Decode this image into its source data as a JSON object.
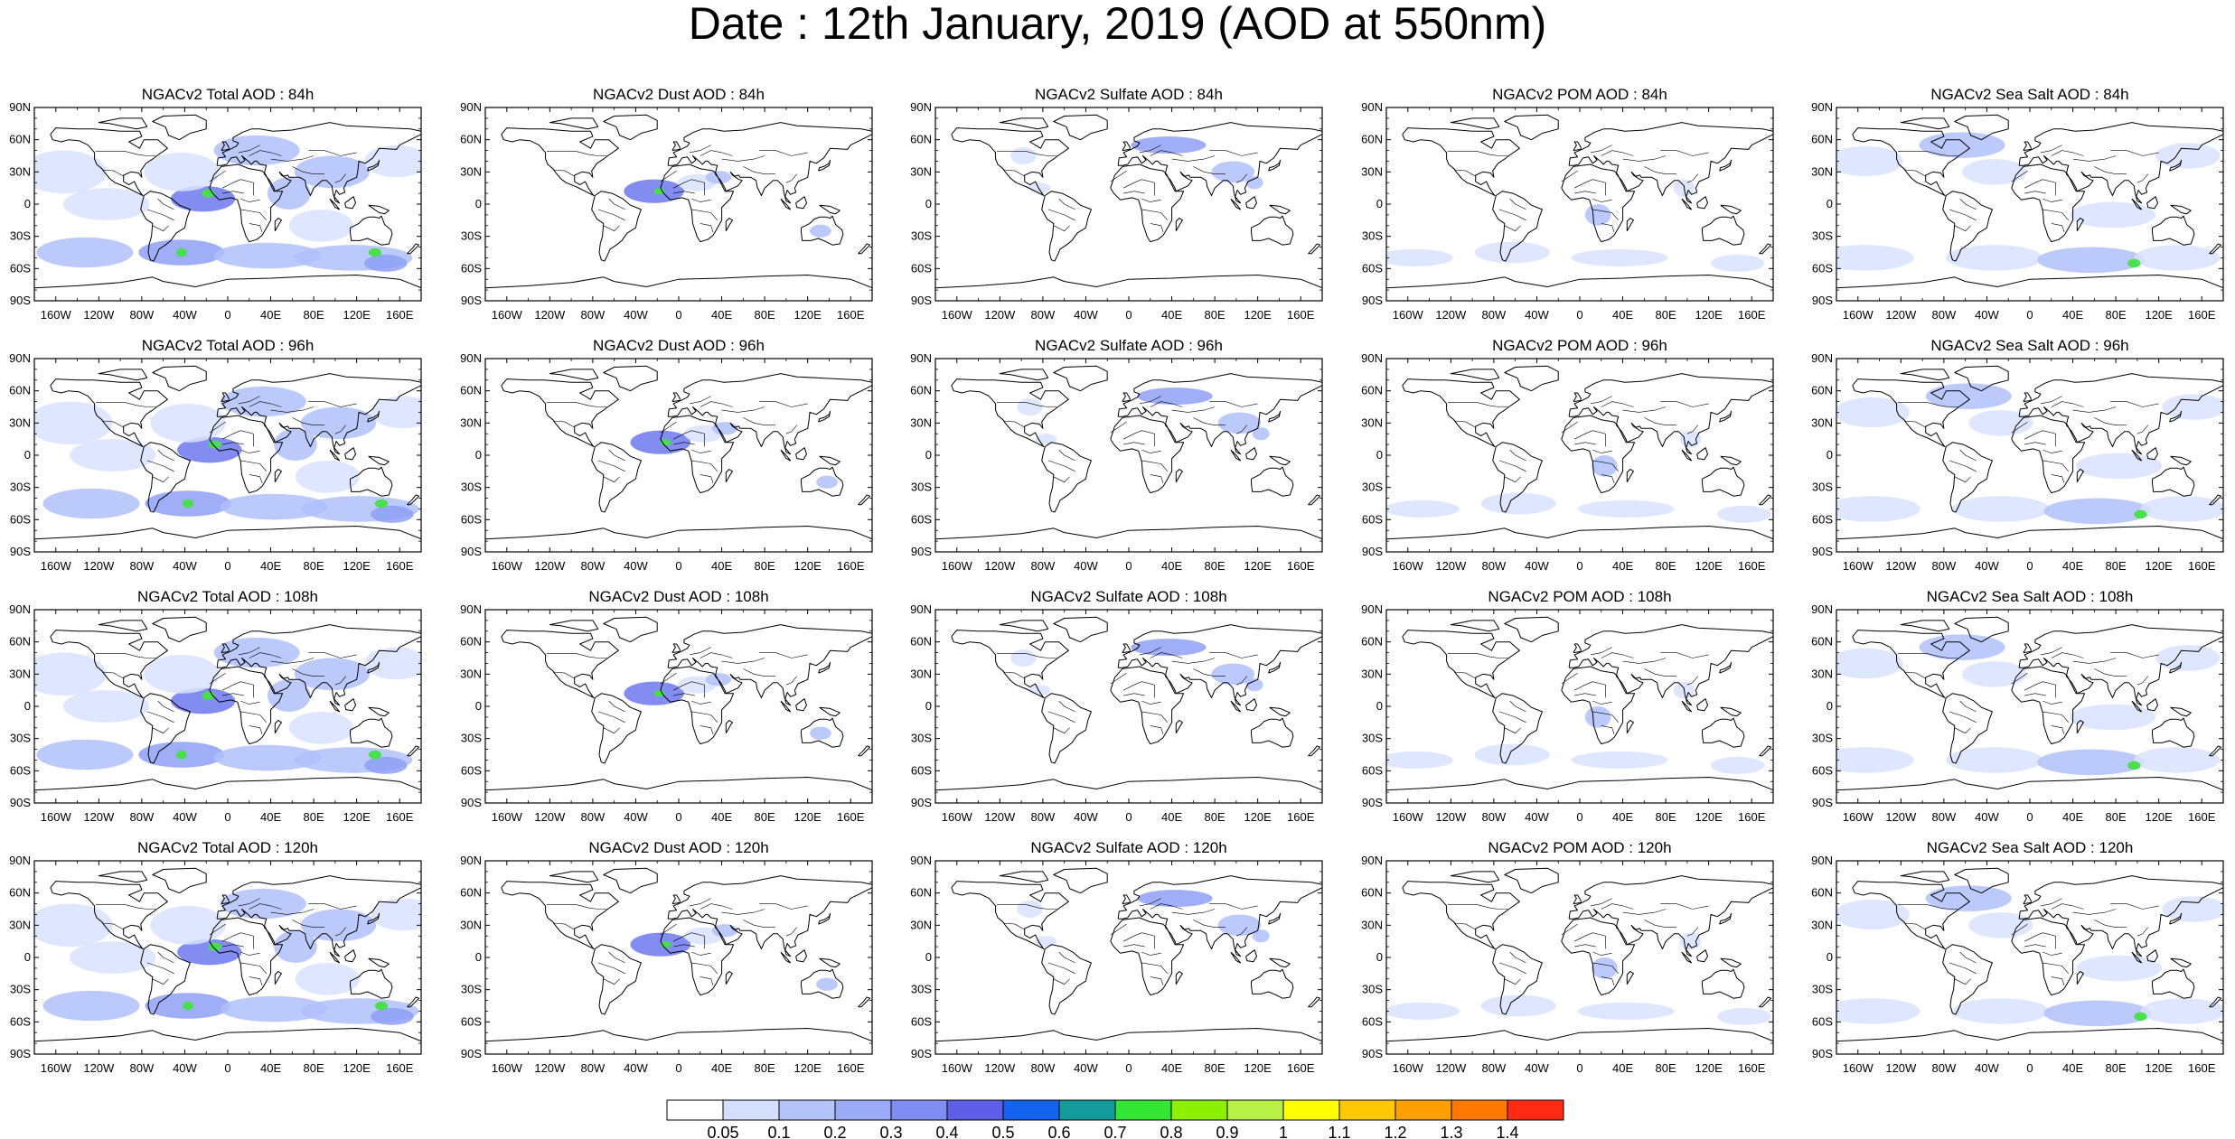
{
  "title": "Date : 12th January, 2019 (AOD at 550nm)",
  "axes": {
    "lat_labels": [
      "90N",
      "60N",
      "30N",
      "0",
      "30S",
      "60S",
      "90S"
    ],
    "lon_labels": [
      "160W",
      "120W",
      "80W",
      "40W",
      "0",
      "40E",
      "80E",
      "120E",
      "160E"
    ]
  },
  "panels": [
    [
      "NGACv2 Total AOD : 84h",
      "NGACv2 Dust AOD : 84h",
      "NGACv2 Sulfate AOD : 84h",
      "NGACv2 POM AOD : 84h",
      "NGACv2 Sea Salt AOD : 84h"
    ],
    [
      "NGACv2 Total AOD : 96h",
      "NGACv2 Dust AOD : 96h",
      "NGACv2 Sulfate AOD : 96h",
      "NGACv2 POM AOD : 96h",
      "NGACv2 Sea Salt AOD : 96h"
    ],
    [
      "NGACv2 Total AOD : 108h",
      "NGACv2 Dust AOD : 108h",
      "NGACv2 Sulfate AOD : 108h",
      "NGACv2 POM AOD : 108h",
      "NGACv2 Sea Salt AOD : 108h"
    ],
    [
      "NGACv2 Total AOD : 120h",
      "NGACv2 Dust AOD : 120h",
      "NGACv2 Sulfate AOD : 120h",
      "NGACv2 POM AOD : 120h",
      "NGACv2 Sea Salt  AOD : 120h"
    ]
  ],
  "species": [
    "total",
    "dust",
    "sulfate",
    "pom",
    "seasalt"
  ],
  "colorbar": {
    "labels": [
      "0.05",
      "0.1",
      "0.2",
      "0.3",
      "0.4",
      "0.5",
      "0.6",
      "0.7",
      "0.8",
      "0.9",
      "1",
      "1.1",
      "1.2",
      "1.3",
      "1.4"
    ],
    "colors": [
      "#ffffff",
      "#d4deff",
      "#b4c4fb",
      "#9aaaf7",
      "#7f8cf2",
      "#5e5ee8",
      "#1462f0",
      "#139a9a",
      "#33e633",
      "#8cf000",
      "#b8f046",
      "#ffff00",
      "#ffc800",
      "#ffa000",
      "#ff7800",
      "#ff2a14"
    ]
  },
  "palette": {
    "light": "#d9e2ff",
    "mid": "#b0c0fa",
    "strong": "#8ea0f5",
    "deep": "#6c78ee",
    "hot": "#44e044"
  }
}
